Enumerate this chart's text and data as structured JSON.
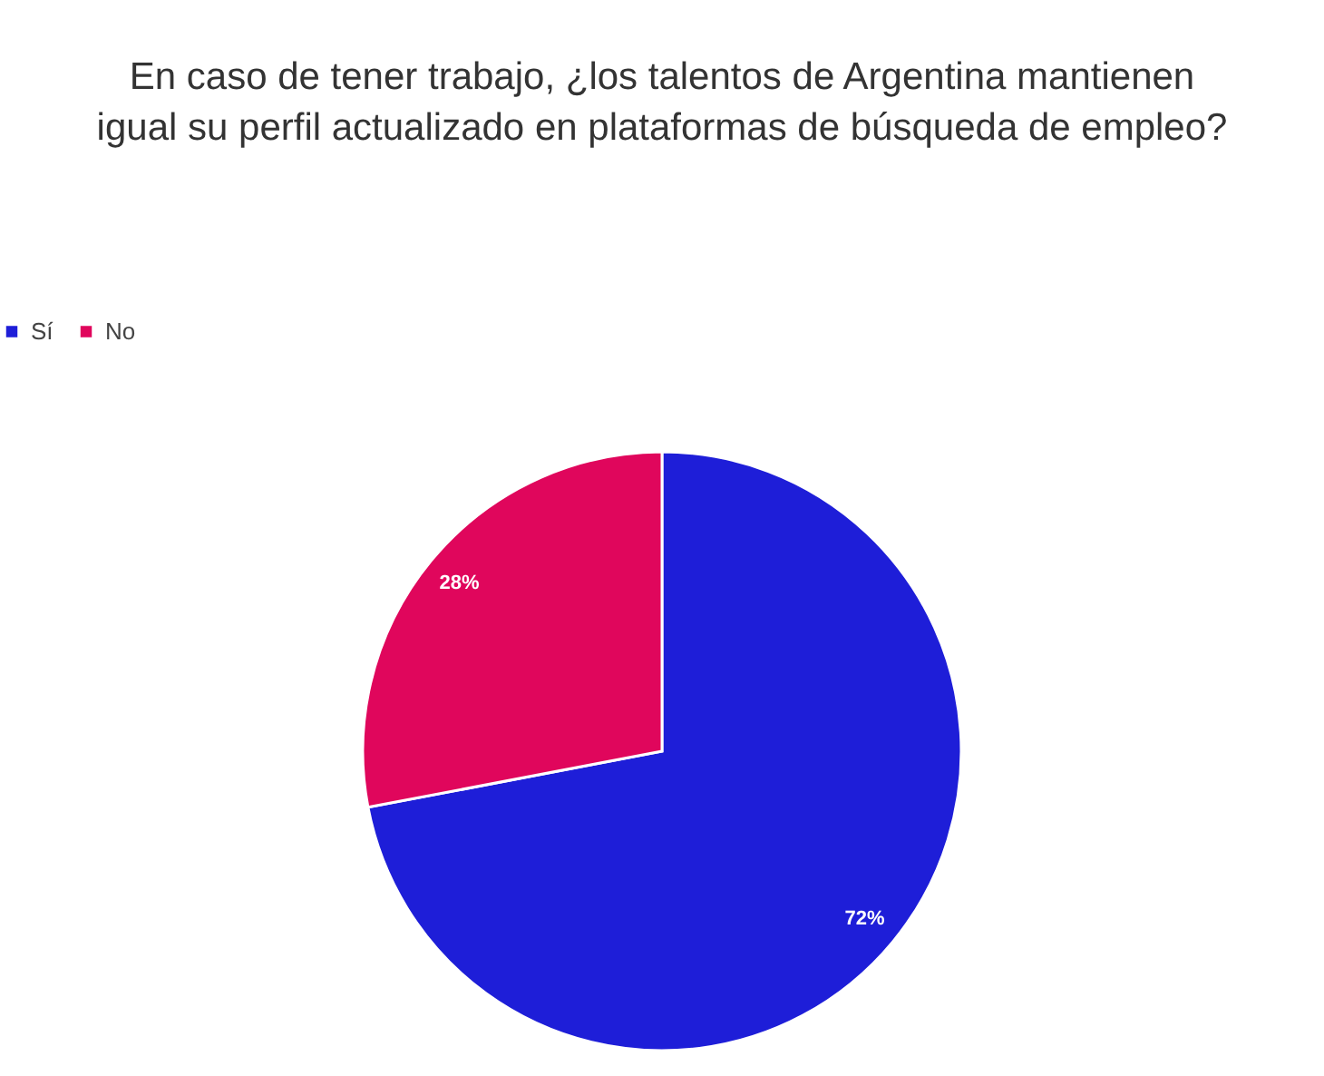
{
  "chart_data": {
    "type": "pie",
    "title": "En caso de tener trabajo, ¿los talentos de Argentina mantienen igual su perfil actualizado en plataformas de búsqueda de empleo?",
    "categories": [
      "Sí",
      "No"
    ],
    "values": [
      72,
      28
    ],
    "colors": [
      "#1e1ed8",
      "#e0065c"
    ],
    "value_labels": [
      "72%",
      "28%"
    ],
    "legend": "top"
  }
}
